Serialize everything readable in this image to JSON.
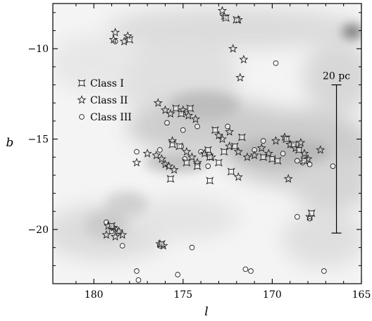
{
  "chart_data": {
    "type": "scatter",
    "title": "",
    "xlabel": "l",
    "ylabel": "b",
    "xlim": [
      182.3,
      165
    ],
    "ylim": [
      -23,
      -7.5
    ],
    "x_reversed": true,
    "xticks": [
      180,
      175,
      170,
      165
    ],
    "yticks": [
      -10,
      -15,
      -20
    ],
    "xtick_labels": [
      "180",
      "175",
      "170",
      "165"
    ],
    "ytick_labels": [
      "−10",
      "−15",
      "−20"
    ],
    "background": "grayscale extinction map",
    "legend_position": "left",
    "scale_bar": {
      "label": "20 pc",
      "b_top": -12,
      "b_bottom": -20.2,
      "l": 166.4
    },
    "series": [
      {
        "name": "Class I",
        "marker": "bracket-square",
        "points": [
          [
            172.6,
            -8.3
          ],
          [
            172.0,
            -8.4
          ],
          [
            178.0,
            -9.5
          ],
          [
            175.4,
            -13.3
          ],
          [
            175.1,
            -13.6
          ],
          [
            174.6,
            -13.3
          ],
          [
            173.2,
            -14.5
          ],
          [
            171.7,
            -14.9
          ],
          [
            172.1,
            -15.4
          ],
          [
            175.2,
            -15.4
          ],
          [
            175.6,
            -15.3
          ],
          [
            173.6,
            -15.6
          ],
          [
            172.7,
            -15.7
          ],
          [
            174.8,
            -16.3
          ],
          [
            174.2,
            -16.5
          ],
          [
            173.5,
            -16.0
          ],
          [
            173.0,
            -16.3
          ],
          [
            172.3,
            -16.8
          ],
          [
            170.5,
            -16.0
          ],
          [
            170.0,
            -16.1
          ],
          [
            169.2,
            -15.0
          ],
          [
            168.8,
            -15.3
          ],
          [
            168.5,
            -15.6
          ],
          [
            168.2,
            -16.2
          ],
          [
            169.7,
            -16.2
          ],
          [
            175.7,
            -17.2
          ],
          [
            179.0,
            -19.8
          ],
          [
            176.2,
            -20.8
          ],
          [
            167.8,
            -19.1
          ],
          [
            173.5,
            -17.3
          ]
        ]
      },
      {
        "name": "Class II",
        "marker": "star",
        "points": [
          [
            172.8,
            -7.9
          ],
          [
            172.7,
            -8.2
          ],
          [
            171.9,
            -8.4
          ],
          [
            178.8,
            -9.1
          ],
          [
            178.9,
            -9.5
          ],
          [
            178.1,
            -9.3
          ],
          [
            178.3,
            -9.6
          ],
          [
            172.2,
            -10.0
          ],
          [
            171.6,
            -10.6
          ],
          [
            171.8,
            -11.6
          ],
          [
            176.4,
            -13.0
          ],
          [
            176.0,
            -13.4
          ],
          [
            175.7,
            -13.6
          ],
          [
            175.0,
            -13.4
          ],
          [
            174.3,
            -13.9
          ],
          [
            174.7,
            -13.7
          ],
          [
            177.0,
            -15.8
          ],
          [
            176.5,
            -15.9
          ],
          [
            176.2,
            -16.1
          ],
          [
            176.0,
            -16.4
          ],
          [
            175.8,
            -16.5
          ],
          [
            175.5,
            -16.7
          ],
          [
            174.8,
            -15.7
          ],
          [
            174.5,
            -16.0
          ],
          [
            174.2,
            -16.3
          ],
          [
            173.8,
            -15.8
          ],
          [
            173.4,
            -16.0
          ],
          [
            173.0,
            -14.8
          ],
          [
            172.8,
            -15.0
          ],
          [
            172.4,
            -15.4
          ],
          [
            171.9,
            -15.7
          ],
          [
            171.4,
            -16.0
          ],
          [
            171.0,
            -15.9
          ],
          [
            170.6,
            -15.5
          ],
          [
            170.2,
            -15.8
          ],
          [
            169.8,
            -15.1
          ],
          [
            169.3,
            -14.9
          ],
          [
            169.0,
            -15.3
          ],
          [
            168.7,
            -15.5
          ],
          [
            168.4,
            -15.2
          ],
          [
            168.2,
            -15.8
          ],
          [
            168.0,
            -16.1
          ],
          [
            167.3,
            -15.6
          ],
          [
            169.1,
            -17.2
          ],
          [
            171.9,
            -17.1
          ],
          [
            172.4,
            -14.6
          ],
          [
            175.6,
            -15.1
          ],
          [
            179.2,
            -19.8
          ],
          [
            178.9,
            -19.9
          ],
          [
            178.6,
            -20.1
          ],
          [
            178.4,
            -20.3
          ],
          [
            178.8,
            -20.4
          ],
          [
            179.3,
            -20.3
          ],
          [
            176.3,
            -20.8
          ],
          [
            176.1,
            -20.9
          ],
          [
            167.9,
            -19.3
          ],
          [
            177.6,
            -16.3
          ]
        ]
      },
      {
        "name": "Class III",
        "marker": "circle",
        "points": [
          [
            178.8,
            -9.6
          ],
          [
            169.8,
            -10.8
          ],
          [
            175.9,
            -14.1
          ],
          [
            175.0,
            -14.5
          ],
          [
            174.2,
            -14.3
          ],
          [
            172.5,
            -14.3
          ],
          [
            177.6,
            -15.7
          ],
          [
            176.3,
            -15.6
          ],
          [
            175.1,
            -15.4
          ],
          [
            174.9,
            -16.1
          ],
          [
            174.0,
            -15.7
          ],
          [
            173.6,
            -16.5
          ],
          [
            171.0,
            -15.6
          ],
          [
            169.4,
            -15.8
          ],
          [
            168.6,
            -16.2
          ],
          [
            168.3,
            -16.3
          ],
          [
            167.9,
            -16.4
          ],
          [
            166.6,
            -16.5
          ],
          [
            170.5,
            -15.1
          ],
          [
            179.3,
            -19.6
          ],
          [
            179.0,
            -20.1
          ],
          [
            178.8,
            -20.0
          ],
          [
            178.4,
            -20.9
          ],
          [
            168.6,
            -19.3
          ],
          [
            167.9,
            -19.4
          ],
          [
            174.5,
            -21.0
          ],
          [
            177.6,
            -22.3
          ],
          [
            175.3,
            -22.5
          ],
          [
            171.5,
            -22.2
          ],
          [
            171.2,
            -22.3
          ],
          [
            167.1,
            -22.3
          ],
          [
            177.5,
            -22.8
          ],
          [
            176.3,
            -20.9
          ]
        ]
      }
    ]
  }
}
